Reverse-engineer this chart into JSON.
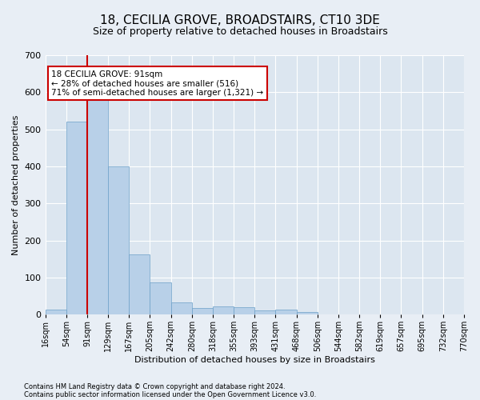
{
  "title": "18, CECILIA GROVE, BROADSTAIRS, CT10 3DE",
  "subtitle": "Size of property relative to detached houses in Broadstairs",
  "xlabel": "Distribution of detached houses by size in Broadstairs",
  "ylabel": "Number of detached properties",
  "bar_values": [
    14,
    521,
    584,
    400,
    163,
    87,
    32,
    18,
    21,
    19,
    12,
    13,
    6,
    0,
    0,
    0,
    0,
    0,
    0,
    0
  ],
  "bar_labels": [
    "16sqm",
    "54sqm",
    "91sqm",
    "129sqm",
    "167sqm",
    "205sqm",
    "242sqm",
    "280sqm",
    "318sqm",
    "355sqm",
    "393sqm",
    "431sqm",
    "468sqm",
    "506sqm",
    "544sqm",
    "582sqm",
    "619sqm",
    "657sqm",
    "695sqm",
    "732sqm",
    "770sqm"
  ],
  "bar_color": "#b8d0e8",
  "bar_edge_color": "#6ca0c8",
  "vline_color": "#cc0000",
  "annotation_text_line1": "18 CECILIA GROVE: 91sqm",
  "annotation_text_line2": "← 28% of detached houses are smaller (516)",
  "annotation_text_line3": "71% of semi-detached houses are larger (1,321) →",
  "annotation_box_color": "#cc0000",
  "ylim": [
    0,
    700
  ],
  "yticks": [
    0,
    100,
    200,
    300,
    400,
    500,
    600,
    700
  ],
  "footer_line1": "Contains HM Land Registry data © Crown copyright and database right 2024.",
  "footer_line2": "Contains public sector information licensed under the Open Government Licence v3.0.",
  "background_color": "#e8eef5",
  "plot_bg_color": "#dce6f0",
  "title_fontsize": 11,
  "subtitle_fontsize": 9,
  "tick_fontsize": 7,
  "ylabel_fontsize": 8,
  "xlabel_fontsize": 8,
  "footer_fontsize": 6
}
